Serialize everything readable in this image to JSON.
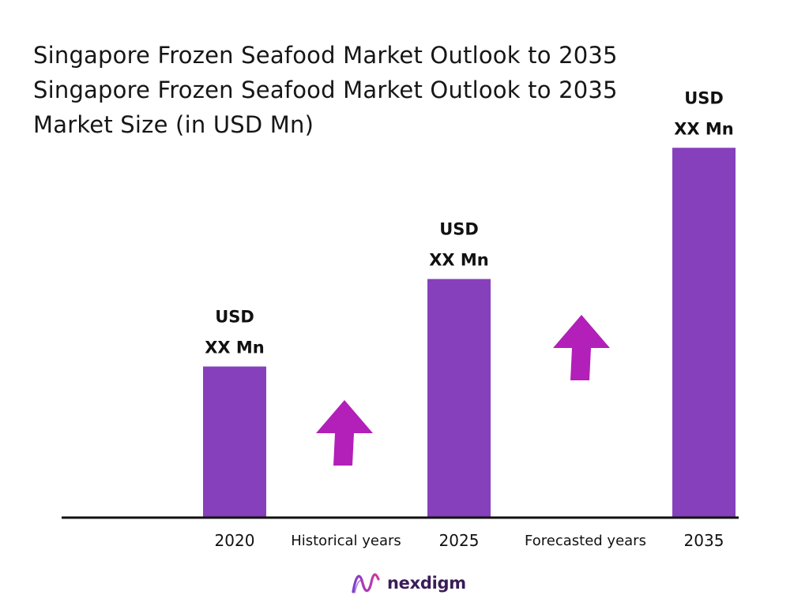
{
  "title": {
    "lines": [
      "Singapore Frozen Seafood Market Outlook to 2035",
      "Singapore Frozen Seafood Market Outlook to 2035",
      "Market Size (in USD Mn)"
    ]
  },
  "colors": {
    "bar": "#8640BC",
    "arrow": "#B31FB9",
    "axis": "#111111"
  },
  "chart_data": {
    "type": "bar",
    "categories": [
      "2020",
      "2025",
      "2035"
    ],
    "values": [
      38,
      60,
      93
    ],
    "value_note": "relative bar heights; actual values not disclosed",
    "data_labels": [
      [
        "USD",
        "XX Mn"
      ],
      [
        "USD",
        "XX Mn"
      ],
      [
        "USD",
        "XX Mn"
      ]
    ],
    "period_labels": [
      "Historical years",
      "Forecasted years"
    ],
    "growth_arrows": [
      "arrow-up-icon",
      "arrow-up-icon"
    ],
    "ylim": [
      0,
      100
    ],
    "grid": false
  },
  "brand": {
    "logo_icon": "nexdigm-wave-icon",
    "name": "nexdigm"
  }
}
